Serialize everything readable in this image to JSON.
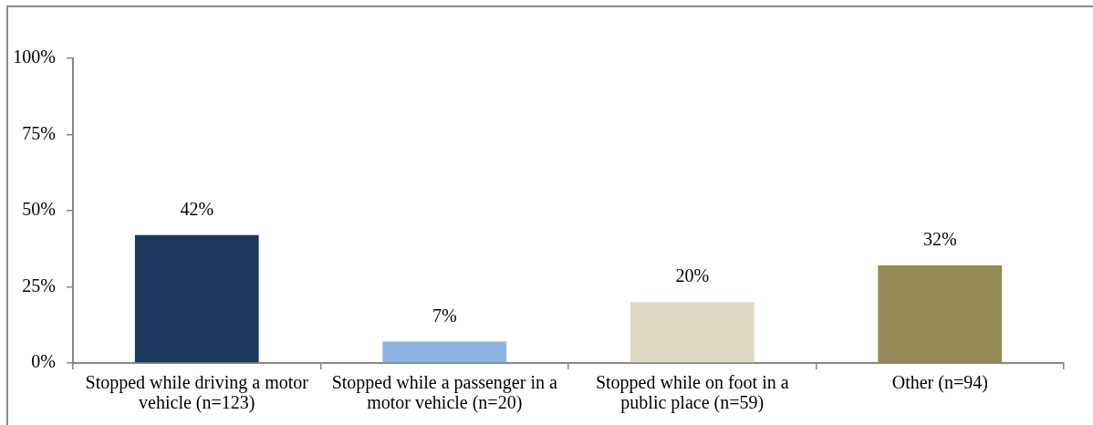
{
  "chart_data": {
    "type": "bar",
    "categories": [
      "Stopped while driving a motor vehicle (n=123)",
      "Stopped while a passenger in a motor vehicle (n=20)",
      "Stopped while on foot in a public place (n=59)",
      "Other (n=94)"
    ],
    "values": [
      42,
      7,
      20,
      32
    ],
    "colors": [
      "#1b375c",
      "#8db3e2",
      "#ddd9c3",
      "#948a54"
    ],
    "value_labels": [
      "42%",
      "7%",
      "20%",
      "32%"
    ],
    "ylim": [
      0,
      100
    ],
    "yticks": [
      {
        "value": 0,
        "label": "0%"
      },
      {
        "value": 25,
        "label": "25%"
      },
      {
        "value": 50,
        "label": "50%"
      },
      {
        "value": 75,
        "label": "75%"
      },
      {
        "value": 100,
        "label": "100%"
      }
    ]
  }
}
